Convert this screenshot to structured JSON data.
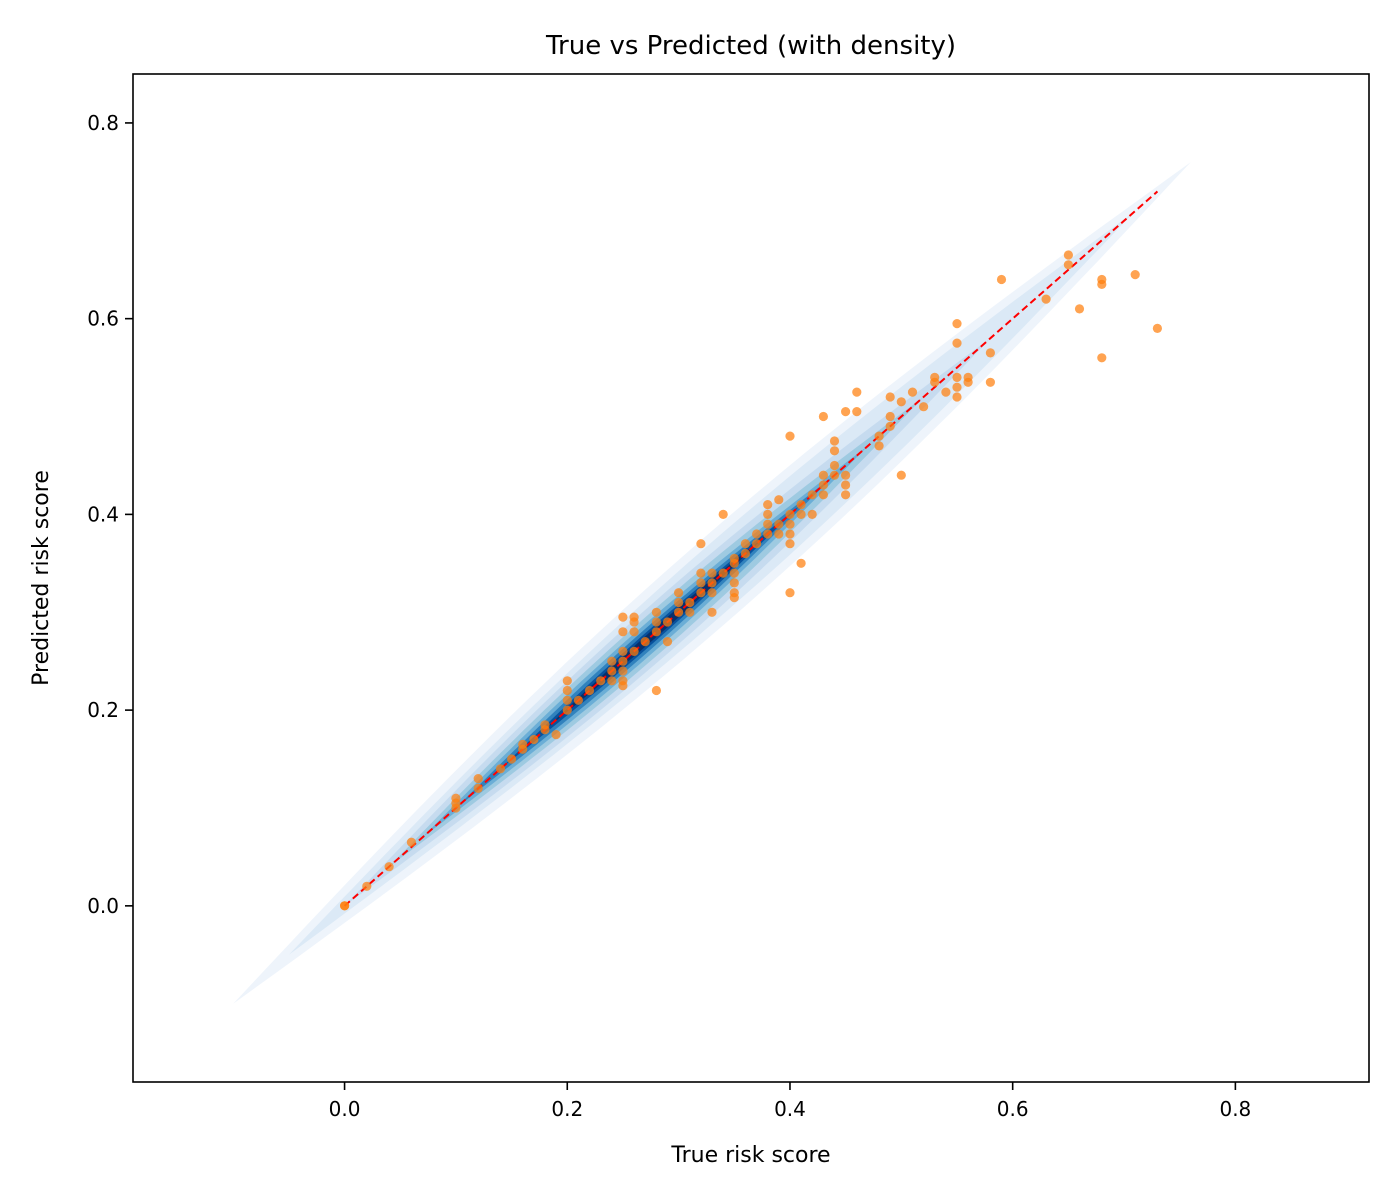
{
  "chart_data": {
    "type": "scatter",
    "title": "True vs Predicted (with density)",
    "xlabel": "True risk score",
    "ylabel": "Predicted risk score",
    "xlim": [
      -0.19,
      0.92
    ],
    "ylim": [
      -0.18,
      0.85
    ],
    "xticks": [
      0.0,
      0.2,
      0.4,
      0.6,
      0.8
    ],
    "yticks": [
      0.0,
      0.2,
      0.4,
      0.6,
      0.8
    ],
    "xtick_labels": [
      "0.0",
      "0.2",
      "0.4",
      "0.6",
      "0.8"
    ],
    "ytick_labels": [
      "0.0",
      "0.2",
      "0.4",
      "0.6",
      "0.8"
    ],
    "grid": false,
    "colors": {
      "points": "#ff7f0e",
      "reference_line": "#ff0000",
      "density_light": "#eef4fb",
      "density_dark": "#08306b"
    },
    "reference_line": {
      "style": "dashed",
      "x": [
        0.0,
        0.73
      ],
      "y": [
        0.0,
        0.73
      ]
    },
    "density": {
      "type": "kde-contour",
      "levels": [
        {
          "t0": -0.1,
          "t1": 0.76,
          "w": 0.028,
          "color": "#eef4fb"
        },
        {
          "t0": -0.05,
          "t1": 0.71,
          "w": 0.022,
          "color": "#dbe9f6"
        },
        {
          "t0": 0.0,
          "t1": 0.58,
          "w": 0.017,
          "color": "#c6dbef"
        },
        {
          "t0": 0.04,
          "t1": 0.52,
          "w": 0.013,
          "color": "#9ecae1"
        },
        {
          "t0": 0.07,
          "t1": 0.47,
          "w": 0.0095,
          "color": "#6baed6"
        },
        {
          "t0": 0.1,
          "t1": 0.44,
          "w": 0.0068,
          "color": "#3182bd"
        },
        {
          "t0": 0.14,
          "t1": 0.41,
          "w": 0.0045,
          "color": "#08519c"
        },
        {
          "t0": 0.18,
          "t1": 0.38,
          "w": 0.0028,
          "color": "#08306b"
        }
      ]
    },
    "series": [
      {
        "points": [
          [
            0.0,
            0.0
          ],
          [
            0.0,
            0.0
          ],
          [
            0.02,
            0.02
          ],
          [
            0.04,
            0.04
          ],
          [
            0.06,
            0.065
          ],
          [
            0.1,
            0.1
          ],
          [
            0.1,
            0.105
          ],
          [
            0.1,
            0.11
          ],
          [
            0.12,
            0.12
          ],
          [
            0.12,
            0.13
          ],
          [
            0.14,
            0.14
          ],
          [
            0.15,
            0.15
          ],
          [
            0.16,
            0.16
          ],
          [
            0.16,
            0.165
          ],
          [
            0.17,
            0.17
          ],
          [
            0.18,
            0.18
          ],
          [
            0.18,
            0.185
          ],
          [
            0.19,
            0.175
          ],
          [
            0.2,
            0.2
          ],
          [
            0.2,
            0.21
          ],
          [
            0.2,
            0.22
          ],
          [
            0.2,
            0.23
          ],
          [
            0.21,
            0.21
          ],
          [
            0.22,
            0.22
          ],
          [
            0.23,
            0.23
          ],
          [
            0.24,
            0.24
          ],
          [
            0.24,
            0.23
          ],
          [
            0.24,
            0.25
          ],
          [
            0.25,
            0.25
          ],
          [
            0.25,
            0.24
          ],
          [
            0.25,
            0.23
          ],
          [
            0.25,
            0.225
          ],
          [
            0.25,
            0.26
          ],
          [
            0.25,
            0.28
          ],
          [
            0.25,
            0.295
          ],
          [
            0.26,
            0.26
          ],
          [
            0.26,
            0.28
          ],
          [
            0.26,
            0.29
          ],
          [
            0.26,
            0.295
          ],
          [
            0.27,
            0.27
          ],
          [
            0.28,
            0.28
          ],
          [
            0.28,
            0.29
          ],
          [
            0.28,
            0.3
          ],
          [
            0.28,
            0.22
          ],
          [
            0.29,
            0.27
          ],
          [
            0.29,
            0.29
          ],
          [
            0.3,
            0.3
          ],
          [
            0.3,
            0.31
          ],
          [
            0.3,
            0.32
          ],
          [
            0.31,
            0.31
          ],
          [
            0.31,
            0.3
          ],
          [
            0.32,
            0.32
          ],
          [
            0.32,
            0.33
          ],
          [
            0.32,
            0.34
          ],
          [
            0.32,
            0.37
          ],
          [
            0.33,
            0.33
          ],
          [
            0.33,
            0.32
          ],
          [
            0.33,
            0.3
          ],
          [
            0.33,
            0.34
          ],
          [
            0.34,
            0.34
          ],
          [
            0.34,
            0.4
          ],
          [
            0.35,
            0.35
          ],
          [
            0.35,
            0.34
          ],
          [
            0.35,
            0.33
          ],
          [
            0.35,
            0.32
          ],
          [
            0.35,
            0.315
          ],
          [
            0.35,
            0.355
          ],
          [
            0.36,
            0.36
          ],
          [
            0.36,
            0.37
          ],
          [
            0.37,
            0.37
          ],
          [
            0.37,
            0.38
          ],
          [
            0.38,
            0.38
          ],
          [
            0.38,
            0.39
          ],
          [
            0.38,
            0.4
          ],
          [
            0.38,
            0.41
          ],
          [
            0.39,
            0.39
          ],
          [
            0.39,
            0.415
          ],
          [
            0.39,
            0.38
          ],
          [
            0.4,
            0.4
          ],
          [
            0.4,
            0.39
          ],
          [
            0.4,
            0.38
          ],
          [
            0.4,
            0.37
          ],
          [
            0.4,
            0.32
          ],
          [
            0.4,
            0.48
          ],
          [
            0.41,
            0.41
          ],
          [
            0.41,
            0.4
          ],
          [
            0.41,
            0.35
          ],
          [
            0.42,
            0.42
          ],
          [
            0.42,
            0.4
          ],
          [
            0.43,
            0.43
          ],
          [
            0.43,
            0.44
          ],
          [
            0.43,
            0.42
          ],
          [
            0.43,
            0.5
          ],
          [
            0.44,
            0.44
          ],
          [
            0.44,
            0.45
          ],
          [
            0.44,
            0.475
          ],
          [
            0.44,
            0.465
          ],
          [
            0.45,
            0.44
          ],
          [
            0.45,
            0.43
          ],
          [
            0.45,
            0.42
          ],
          [
            0.45,
            0.505
          ],
          [
            0.46,
            0.505
          ],
          [
            0.46,
            0.525
          ],
          [
            0.48,
            0.48
          ],
          [
            0.48,
            0.47
          ],
          [
            0.49,
            0.49
          ],
          [
            0.49,
            0.5
          ],
          [
            0.49,
            0.52
          ],
          [
            0.5,
            0.515
          ],
          [
            0.5,
            0.44
          ],
          [
            0.51,
            0.525
          ],
          [
            0.52,
            0.51
          ],
          [
            0.53,
            0.535
          ],
          [
            0.53,
            0.54
          ],
          [
            0.54,
            0.525
          ],
          [
            0.55,
            0.52
          ],
          [
            0.55,
            0.53
          ],
          [
            0.55,
            0.54
          ],
          [
            0.55,
            0.575
          ],
          [
            0.55,
            0.595
          ],
          [
            0.56,
            0.535
          ],
          [
            0.56,
            0.54
          ],
          [
            0.58,
            0.535
          ],
          [
            0.58,
            0.565
          ],
          [
            0.59,
            0.64
          ],
          [
            0.63,
            0.62
          ],
          [
            0.65,
            0.665
          ],
          [
            0.65,
            0.655
          ],
          [
            0.66,
            0.61
          ],
          [
            0.68,
            0.64
          ],
          [
            0.68,
            0.635
          ],
          [
            0.68,
            0.56
          ],
          [
            0.71,
            0.645
          ],
          [
            0.73,
            0.59
          ]
        ]
      }
    ]
  }
}
